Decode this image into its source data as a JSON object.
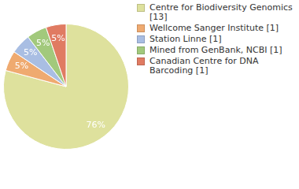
{
  "chart_data": {
    "type": "pie",
    "categories": [
      "Centre for Biodiversity Genomics [13]",
      "Wellcome Sanger Institute [1]",
      "Station Linne [1]",
      "Mined from GenBank, NCBI [1]",
      "Canadian Centre for DNA Barcoding [1]"
    ],
    "values": [
      76,
      5,
      5,
      5,
      5
    ],
    "value_labels": [
      "76%",
      "5%",
      "5%",
      "5%",
      "5%"
    ],
    "colors": [
      "#dee19d",
      "#efaa70",
      "#a9bee3",
      "#a2c97c",
      "#e07b62"
    ],
    "data_labels": true,
    "legend": "right"
  }
}
